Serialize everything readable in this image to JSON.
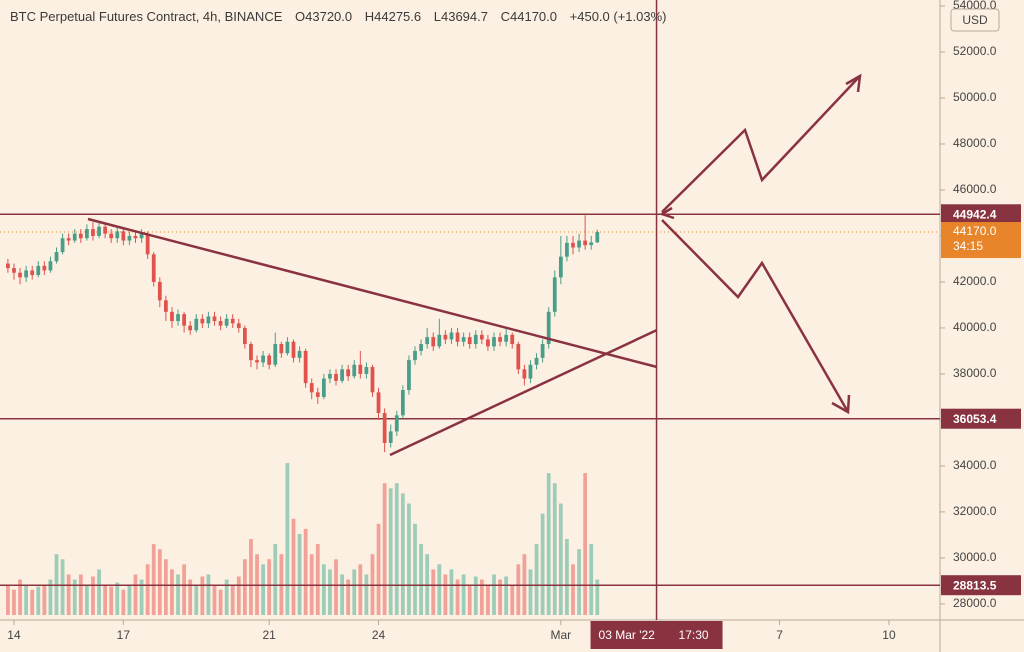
{
  "chart_data": {
    "type": "candlestick",
    "title": "BTC Perpetual Futures Contract, 4h, BINANCE",
    "legend_values": [
      "O43720.0",
      "H44275.6",
      "L43694.7",
      "C44170.0",
      "+450.0 (+1.03%)"
    ],
    "currency": "USD",
    "x": [
      -4,
      0,
      4,
      8,
      12,
      16,
      20,
      24,
      28,
      32,
      36,
      40,
      44,
      48,
      52,
      56,
      60,
      64,
      68,
      72,
      76,
      80,
      84,
      88,
      92,
      96,
      100,
      104,
      108,
      112,
      116,
      120,
      124,
      128,
      132,
      136,
      140,
      144,
      148,
      152,
      156,
      160,
      164,
      168,
      172,
      176,
      180,
      184,
      188,
      192,
      196,
      200,
      204,
      208,
      212,
      216,
      220,
      224,
      228,
      232,
      236,
      240,
      244,
      248,
      252,
      256,
      260,
      264,
      268,
      272,
      276,
      280,
      284,
      288,
      292,
      296,
      300,
      304,
      308,
      312,
      316,
      320,
      324,
      328,
      332,
      336,
      340,
      344,
      348,
      352,
      356,
      360,
      364,
      368,
      372,
      376,
      380,
      384
    ],
    "open": [
      42800,
      42600,
      42400,
      42200,
      42500,
      42300,
      42700,
      42500,
      42900,
      43300,
      43900,
      43800,
      44100,
      43900,
      44300,
      44000,
      44400,
      44100,
      43900,
      44200,
      43800,
      44000,
      43900,
      44100,
      43200,
      42000,
      41200,
      40700,
      40300,
      40600,
      40100,
      39900,
      40400,
      40200,
      40500,
      40300,
      40100,
      40400,
      40200,
      40000,
      39300,
      38600,
      38500,
      38800,
      38400,
      39300,
      38900,
      39400,
      38700,
      39000,
      37600,
      37200,
      37000,
      37800,
      38000,
      37700,
      38200,
      37900,
      38400,
      38000,
      38300,
      37200,
      36300,
      35000,
      35500,
      36200,
      37300,
      38600,
      39000,
      39300,
      39600,
      39200,
      39700,
      39500,
      39800,
      39400,
      39600,
      39300,
      39700,
      39500,
      39200,
      39600,
      39400,
      39700,
      39300,
      38200,
      37800,
      38400,
      38700,
      39300,
      40700,
      42200,
      43100,
      43700,
      43500,
      43800,
      43600,
      43720
    ],
    "high": [
      43000,
      42800,
      42600,
      42700,
      42700,
      42900,
      42900,
      43100,
      43500,
      44100,
      44100,
      44300,
      44300,
      44500,
      44600,
      44600,
      44500,
      44300,
      44400,
      44300,
      44200,
      44200,
      44300,
      44200,
      43300,
      42200,
      41400,
      40900,
      40800,
      40700,
      40300,
      40600,
      40600,
      40700,
      40700,
      40500,
      40600,
      40600,
      40400,
      40100,
      39400,
      38800,
      39000,
      38900,
      39800,
      39400,
      39600,
      39500,
      39200,
      39100,
      37800,
      37400,
      38000,
      38200,
      38200,
      38400,
      38400,
      38600,
      39000,
      38500,
      38400,
      37400,
      36500,
      35800,
      36400,
      37500,
      38800,
      39200,
      39500,
      40000,
      39800,
      40400,
      39900,
      40000,
      40000,
      39800,
      39800,
      39900,
      39900,
      39700,
      39800,
      39800,
      40000,
      39800,
      39400,
      38400,
      38600,
      38900,
      39500,
      40900,
      42500,
      44000,
      44000,
      44000,
      44100,
      44900,
      44000,
      44275.6
    ],
    "low": [
      42400,
      42100,
      41900,
      42000,
      42100,
      42200,
      42300,
      42400,
      42800,
      43200,
      43600,
      43700,
      43700,
      43800,
      43800,
      43900,
      43900,
      43700,
      43700,
      43600,
      43600,
      43700,
      43700,
      43000,
      41800,
      40900,
      40300,
      40000,
      40100,
      39800,
      39700,
      39800,
      40000,
      40000,
      40100,
      39900,
      40000,
      40000,
      39800,
      39100,
      38300,
      38200,
      38300,
      38200,
      38300,
      38700,
      38800,
      38500,
      38500,
      37400,
      36900,
      36700,
      36900,
      37600,
      37500,
      37600,
      37700,
      37800,
      37800,
      37800,
      37000,
      36000,
      34600,
      34800,
      35300,
      36000,
      37100,
      38400,
      38800,
      39100,
      39000,
      39100,
      39300,
      39300,
      39200,
      39200,
      39100,
      39100,
      39300,
      39000,
      39000,
      39200,
      39200,
      39100,
      38000,
      37500,
      37600,
      38200,
      38500,
      39100,
      40500,
      41900,
      42900,
      43200,
      43300,
      43400,
      43400,
      43694.7
    ],
    "close": [
      42600,
      42400,
      42200,
      42500,
      42300,
      42700,
      42500,
      42900,
      43300,
      43900,
      43800,
      44100,
      43900,
      44300,
      44000,
      44400,
      44100,
      43900,
      44200,
      43800,
      44000,
      43900,
      44100,
      43200,
      42000,
      41200,
      40700,
      40300,
      40600,
      40100,
      39900,
      40400,
      40200,
      40500,
      40300,
      40100,
      40400,
      40200,
      40000,
      39300,
      38600,
      38500,
      38800,
      38400,
      39300,
      38900,
      39400,
      38700,
      39000,
      37600,
      37200,
      37000,
      37800,
      38000,
      37700,
      38200,
      37900,
      38400,
      38000,
      38300,
      37200,
      36300,
      35000,
      35500,
      36200,
      37300,
      38600,
      39000,
      39300,
      39600,
      39200,
      39700,
      39500,
      39800,
      39400,
      39600,
      39300,
      39700,
      39500,
      39200,
      39600,
      39400,
      39700,
      39300,
      38200,
      37800,
      38400,
      38700,
      39300,
      40700,
      42200,
      43100,
      43700,
      43500,
      43800,
      43600,
      43720,
      44170
    ],
    "volume": [
      30,
      25,
      35,
      30,
      25,
      28,
      30,
      35,
      60,
      55,
      40,
      35,
      40,
      30,
      38,
      45,
      30,
      28,
      32,
      25,
      30,
      40,
      35,
      50,
      70,
      65,
      55,
      45,
      40,
      50,
      35,
      30,
      38,
      40,
      30,
      25,
      35,
      30,
      38,
      55,
      75,
      60,
      50,
      55,
      70,
      60,
      150,
      95,
      80,
      85,
      60,
      70,
      50,
      45,
      55,
      40,
      35,
      45,
      50,
      40,
      60,
      90,
      130,
      125,
      130,
      120,
      110,
      90,
      70,
      60,
      45,
      50,
      40,
      45,
      35,
      40,
      30,
      38,
      35,
      30,
      40,
      35,
      38,
      30,
      50,
      60,
      45,
      70,
      100,
      140,
      130,
      110,
      75,
      50,
      65,
      140,
      70,
      35
    ],
    "up_color": "#4a9e89",
    "down_color": "#e0524c",
    "volume_up_color": "#9dccb9",
    "volume_down_color": "#f2a198",
    "level_color": "#8a3340",
    "xlim": [
      -9.2,
      609.6
    ],
    "xticks": [
      {
        "value": 0,
        "label": "14"
      },
      {
        "value": 72,
        "label": "17"
      },
      {
        "value": 168,
        "label": "21"
      },
      {
        "value": 240,
        "label": "24"
      },
      {
        "value": 360,
        "label": "Mar"
      },
      {
        "value": 504,
        "label": "7"
      },
      {
        "value": 576,
        "label": "10"
      }
    ],
    "ylim": [
      27300,
      54260
    ],
    "yticks": [
      {
        "value": 28000,
        "label": "28000.0"
      },
      {
        "value": 30000,
        "label": "30000.0"
      },
      {
        "value": 32000,
        "label": "32000.0"
      },
      {
        "value": 34000,
        "label": "34000.0"
      },
      {
        "value": 36000,
        "label": "36000.0"
      },
      {
        "value": 38000,
        "label": "38000.0"
      },
      {
        "value": 40000,
        "label": "40000.0"
      },
      {
        "value": 42000,
        "label": "42000.0"
      },
      {
        "value": 44000,
        "label": "44000.0"
      },
      {
        "value": 46000,
        "label": "46000.0"
      },
      {
        "value": 48000,
        "label": "48000.0"
      },
      {
        "value": 50000,
        "label": "50000.0"
      },
      {
        "value": 52000,
        "label": "52000.0"
      },
      {
        "value": 54000,
        "label": "54000.0"
      }
    ],
    "levels": [
      44942.4,
      36053.4,
      28813.5
    ],
    "last_price": {
      "value": 44170,
      "label": "44170.0"
    },
    "countdown": "34:15",
    "crosshair": {
      "x": 423,
      "date": "03 Mar '22",
      "time": "17:30"
    },
    "grid": false
  }
}
